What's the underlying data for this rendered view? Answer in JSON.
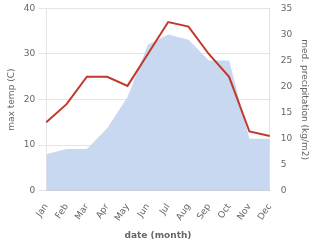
{
  "chart_data": {
    "type": "line",
    "categories": [
      "Jan",
      "Feb",
      "Mar",
      "Apr",
      "May",
      "Jun",
      "Jul",
      "Aug",
      "Sep",
      "Oct",
      "Nov",
      "Dec"
    ],
    "series": [
      {
        "type": "area",
        "color": "#c8d8f0",
        "axis": "y2",
        "values": [
          7,
          8,
          8,
          12,
          18,
          28,
          30,
          29,
          25,
          25,
          10,
          10
        ]
      },
      {
        "type": "line",
        "color": "#c0392b",
        "values": [
          15,
          19,
          25,
          25,
          23,
          30,
          37,
          36,
          30,
          25,
          13,
          12
        ]
      }
    ],
    "xlabel": "date (month)",
    "ylabel": "max temp (C)",
    "y2label": "med. precipitation (kg/m2)",
    "ylim": [
      0,
      40
    ],
    "yticks": [
      0,
      10,
      20,
      30,
      40
    ],
    "y2lim": [
      0,
      35
    ],
    "y2ticks": [
      0,
      5,
      10,
      15,
      20,
      25,
      30,
      35
    ],
    "grid": true
  }
}
